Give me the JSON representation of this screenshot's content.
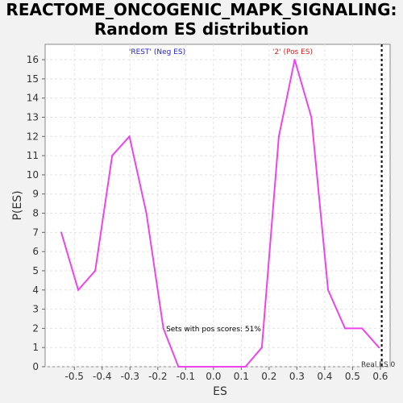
{
  "chart_data": {
    "type": "line",
    "title_line1": "REACTOME_ONCOGENIC_MAPK_SIGNALING:",
    "title_line2": "Random ES distribution",
    "xlabel": "ES",
    "ylabel": "P(ES)",
    "xlim": [
      -0.605,
      0.635
    ],
    "ylim": [
      0,
      16.8
    ],
    "x_ticks": [
      -0.5,
      -0.4,
      -0.3,
      -0.2,
      -0.1,
      0.0,
      0.1,
      0.2,
      0.3,
      0.4,
      0.5,
      0.6
    ],
    "x_tick_labels": [
      "-0.5",
      "-0.4",
      "-0.3",
      "-0.2",
      "-0.1",
      "0.0",
      "0.1",
      "0.2",
      "0.3",
      "0.4",
      "0.5",
      "0.6"
    ],
    "y_ticks": [
      0,
      1,
      2,
      3,
      4,
      5,
      6,
      7,
      8,
      9,
      10,
      11,
      12,
      13,
      14,
      15,
      16
    ],
    "y_tick_labels": [
      "0",
      "1",
      "2",
      "3",
      "4",
      "5",
      "6",
      "7",
      "8",
      "9",
      "10",
      "11",
      "12",
      "13",
      "14",
      "15",
      "16"
    ],
    "grid": true,
    "series": [
      {
        "color": "#ee44ee",
        "x": [
          -0.547,
          -0.486,
          -0.425,
          -0.364,
          -0.302,
          -0.241,
          -0.18,
          -0.126,
          -0.061,
          0.0,
          0.061,
          0.115,
          0.174,
          0.235,
          0.292,
          0.352,
          0.412,
          0.473,
          0.534,
          0.595
        ],
        "y": [
          7,
          4,
          5,
          11,
          12,
          8,
          2,
          0,
          0,
          0,
          0,
          0,
          1,
          12,
          16,
          13,
          4,
          2,
          2,
          1
        ]
      }
    ],
    "real_es": 0.605,
    "real_es_label": "Real ES 0",
    "annotations": {
      "neg_label": "'REST' (Neg ES)",
      "neg_color": "#2222cc",
      "pos_label": "'2' (Pos ES)",
      "pos_color": "#dd2222",
      "pos_scores_note": "Sets with pos scores: 51%"
    }
  }
}
